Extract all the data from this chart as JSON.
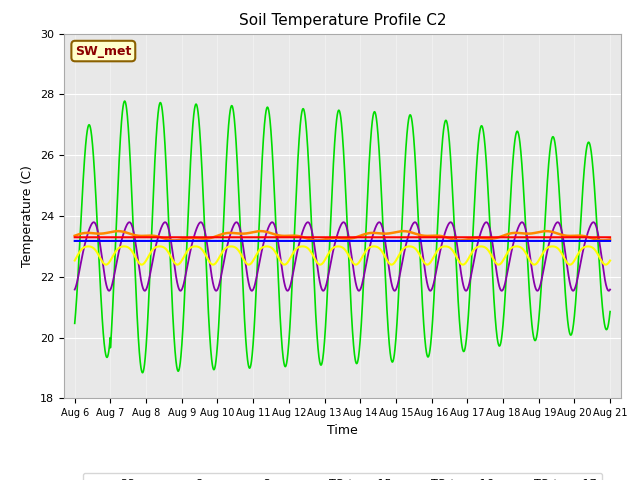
{
  "title": "Soil Temperature Profile C2",
  "xlabel": "Time",
  "ylabel": "Temperature (C)",
  "ylim": [
    18,
    30
  ],
  "x_tick_labels": [
    "Aug 6",
    "Aug 7",
    "Aug 8",
    "Aug 9",
    "Aug 10",
    "Aug 11",
    "Aug 12",
    "Aug 13",
    "Aug 14",
    "Aug 15",
    "Aug 16",
    "Aug 17",
    "Aug 18",
    "Aug 19",
    "Aug 20",
    "Aug 21"
  ],
  "annotation_text": "SW_met",
  "annotation_fg": "#8B0000",
  "annotation_bg": "#FFFFCC",
  "annotation_border": "#8B6000",
  "fig_bg": "#FFFFFF",
  "plot_bg": "#E8E8E8",
  "color_32cm": "#FF0000",
  "color_8cm": "#0000FF",
  "color_2cm": "#00DD00",
  "color_tc15": "#FF8800",
  "color_tc16": "#FFFF00",
  "color_tc17": "#8800AA",
  "yticks": [
    18,
    20,
    22,
    24,
    26,
    28,
    30
  ],
  "grid_color": "#FFFFFF",
  "title_fontsize": 11,
  "label_fontsize": 9,
  "tick_fontsize": 8
}
